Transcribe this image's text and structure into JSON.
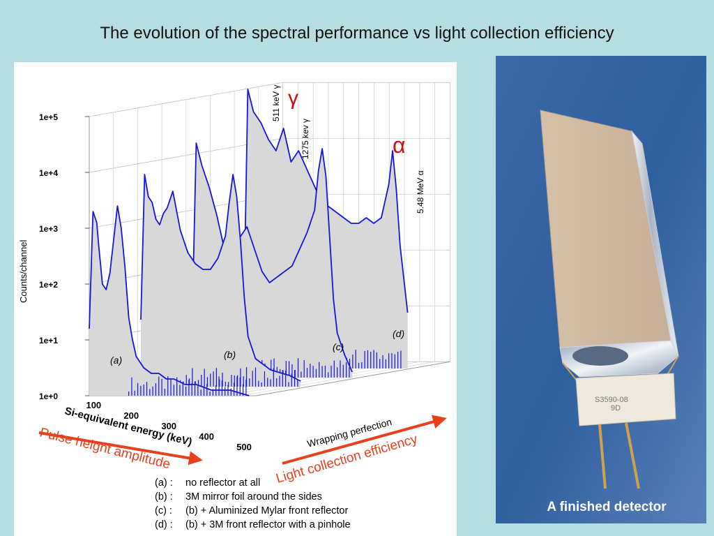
{
  "slide": {
    "title": "The evolution of the spectral performance vs light collection efficiency"
  },
  "photo": {
    "caption": "A finished detector",
    "module_label_line1": "S3590-08",
    "module_label_line2": "9D"
  },
  "annotations": {
    "x_arrow_label": "Pulse height amplitude",
    "depth_arrow_label": "Light collection efficiency",
    "gamma_symbol": "γ",
    "alpha_symbol": "α",
    "peak_511": "511 keV  γ",
    "peak_1275": "1275 kev  γ",
    "peak_548": "5.48 MeV  α"
  },
  "legend": [
    {
      "key": "(a) :",
      "text": " no reflector at all"
    },
    {
      "key": "(b) :",
      "text": " 3M mirror foil around the sides"
    },
    {
      "key": "(c) :",
      "text": " (b) + Aluminized Mylar front reflector"
    },
    {
      "key": "(d) :",
      "text": " (b) + 3M front reflector with a pinhole"
    }
  ],
  "chart_data": {
    "type": "area",
    "title": "",
    "xlabel": "Si-equivalent energy (keV)",
    "ylabel": "Counts/channel",
    "zlabel": "Wrapping perfection",
    "x_ticks": [
      "100",
      "200",
      "300",
      "400",
      "500"
    ],
    "y_ticks": [
      "1e+0",
      "1e+1",
      "1e+2",
      "1e+3",
      "1e+4",
      "1e+5"
    ],
    "xlim": [
      75,
      520
    ],
    "ylim_log10": [
      0,
      5
    ],
    "y_scale": "log",
    "grid": true,
    "colors": {
      "line": "#1515dc",
      "fill": "#d8d8d8"
    },
    "series": [
      {
        "name": "(a)",
        "x": [
          75,
          85,
          95,
          100,
          110,
          120,
          130,
          140,
          150,
          160,
          170,
          180,
          190,
          200,
          210,
          220,
          240,
          260,
          280,
          300,
          330,
          360,
          400,
          450,
          500
        ],
        "log_counts": [
          1.2,
          3.3,
          3.1,
          2.7,
          2.0,
          1.9,
          2.2,
          2.8,
          3.4,
          3.0,
          2.3,
          1.4,
          1.0,
          0.7,
          0.6,
          0.5,
          0.4,
          0.4,
          0.3,
          0.3,
          0.2,
          0.2,
          0.1,
          0.1,
          0.0
        ]
      },
      {
        "name": "(b)",
        "x": [
          75,
          85,
          95,
          105,
          115,
          125,
          135,
          145,
          160,
          180,
          200,
          220,
          240,
          260,
          280,
          300,
          310,
          320,
          330,
          340,
          350,
          360,
          380,
          420,
          470,
          500
        ],
        "log_counts": [
          1.2,
          3.8,
          3.4,
          3.3,
          3.0,
          2.9,
          3.1,
          3.2,
          3.5,
          2.8,
          2.4,
          2.2,
          2.1,
          2.1,
          2.3,
          2.7,
          3.3,
          3.8,
          3.4,
          2.6,
          1.6,
          0.9,
          0.5,
          0.3,
          0.2,
          0.1
        ]
      },
      {
        "name": "(c)",
        "x": [
          75,
          85,
          100,
          120,
          140,
          160,
          180,
          200,
          220,
          240,
          260,
          280,
          300,
          320,
          340,
          360,
          380,
          400,
          410,
          420,
          430,
          440,
          450,
          460,
          480,
          500
        ],
        "log_counts": [
          1.2,
          4.2,
          3.8,
          3.4,
          2.9,
          2.3,
          2.3,
          2.5,
          2.7,
          2.3,
          1.9,
          1.7,
          1.8,
          1.9,
          2.0,
          2.3,
          2.6,
          3.0,
          3.7,
          4.1,
          3.6,
          2.5,
          1.4,
          0.8,
          0.4,
          0.1
        ]
      },
      {
        "name": "(d)",
        "x": [
          75,
          85,
          100,
          120,
          140,
          160,
          180,
          200,
          220,
          240,
          260,
          280,
          300,
          320,
          340,
          360,
          380,
          400,
          420,
          440,
          460,
          470,
          480,
          490,
          500,
          510
        ],
        "log_counts": [
          1.2,
          5.0,
          4.6,
          4.4,
          4.1,
          3.9,
          4.3,
          3.7,
          3.9,
          3.6,
          3.3,
          3.0,
          2.9,
          2.8,
          2.7,
          2.6,
          2.6,
          2.7,
          2.6,
          2.7,
          3.3,
          3.9,
          3.2,
          2.2,
          1.6,
          1.0
        ]
      }
    ],
    "series_labels": [
      "(a)",
      "(b)",
      "(c)",
      "(d)"
    ]
  }
}
